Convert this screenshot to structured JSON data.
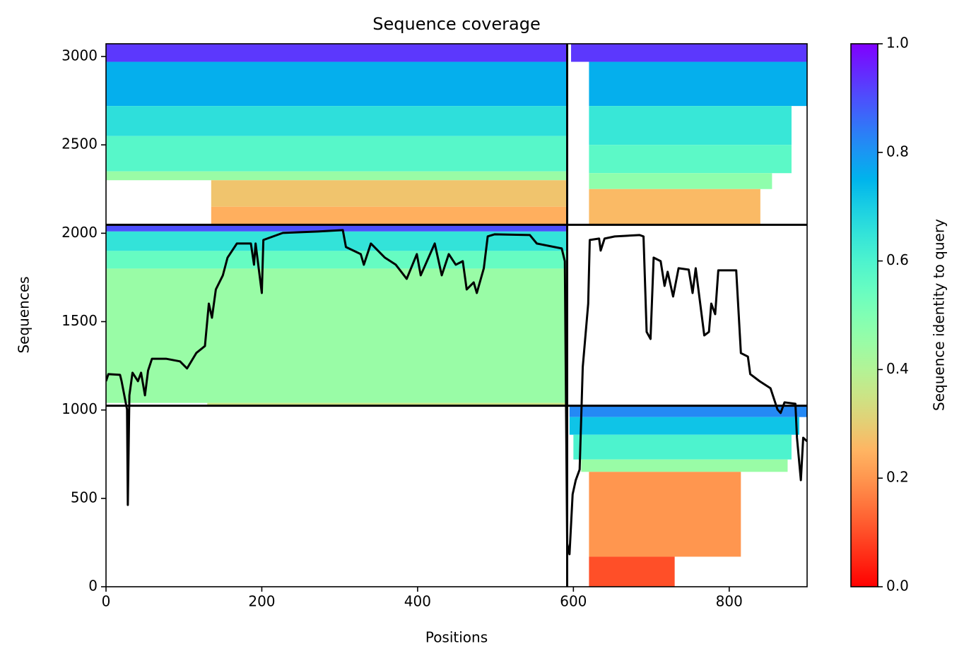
{
  "chart_data": {
    "type": "heatmap",
    "title": "Sequence coverage",
    "x_label": "Positions",
    "y_label": "Sequences",
    "xlim": [
      0,
      900
    ],
    "ylim": [
      0,
      3072
    ],
    "xticks": [
      0,
      200,
      400,
      600,
      800
    ],
    "yticks": [
      0,
      500,
      1000,
      1500,
      2000,
      2500,
      3000
    ],
    "colormap": "rainbow_r",
    "bands": [
      [
        0,
        592,
        2970,
        3072,
        0.93
      ],
      [
        0,
        592,
        2720,
        2970,
        0.76
      ],
      [
        0,
        592,
        2550,
        2720,
        0.66
      ],
      [
        0,
        592,
        2350,
        2550,
        0.58
      ],
      [
        0,
        592,
        2300,
        2350,
        0.45
      ],
      [
        135,
        592,
        2150,
        2300,
        0.28
      ],
      [
        135,
        592,
        2048,
        2150,
        0.24
      ],
      [
        597,
        900,
        2970,
        3072,
        0.93
      ],
      [
        620,
        900,
        2720,
        2970,
        0.76
      ],
      [
        620,
        880,
        2500,
        2720,
        0.64
      ],
      [
        620,
        880,
        2340,
        2500,
        0.57
      ],
      [
        620,
        855,
        2250,
        2340,
        0.47
      ],
      [
        620,
        840,
        2048,
        2250,
        0.26
      ],
      [
        0,
        592,
        2010,
        2048,
        0.9
      ],
      [
        0,
        592,
        1900,
        2010,
        0.65
      ],
      [
        0,
        592,
        1800,
        1900,
        0.55
      ],
      [
        0,
        592,
        1040,
        1800,
        0.45
      ],
      [
        130,
        592,
        1024,
        1040,
        0.35
      ],
      [
        595,
        900,
        960,
        1024,
        0.82
      ],
      [
        595,
        890,
        860,
        960,
        0.72
      ],
      [
        600,
        880,
        720,
        860,
        0.6
      ],
      [
        610,
        875,
        650,
        720,
        0.45
      ],
      [
        620,
        815,
        170,
        650,
        0.2
      ],
      [
        620,
        730,
        0,
        170,
        0.1
      ]
    ],
    "dividers": {
      "x": [
        592
      ],
      "y": [
        1024,
        2048
      ]
    },
    "coverage": {
      "color": "#000000",
      "x": [
        0,
        3,
        18,
        20,
        27,
        28,
        30,
        34,
        41,
        45,
        50,
        54,
        59,
        77,
        95,
        104,
        116,
        127,
        132,
        136,
        141,
        150,
        156,
        168,
        186,
        190,
        192,
        200,
        202,
        227,
        272,
        304,
        308,
        327,
        331,
        340,
        358,
        372,
        386,
        399,
        404,
        422,
        431,
        440,
        449,
        458,
        463,
        472,
        476,
        485,
        490,
        499,
        544,
        553,
        585,
        589,
        592,
        595,
        599,
        603,
        608,
        612,
        619,
        621,
        633,
        635,
        640,
        653,
        685,
        690,
        694,
        699,
        703,
        712,
        717,
        721,
        728,
        735,
        748,
        753,
        757,
        768,
        774,
        777,
        782,
        786,
        809,
        815,
        824,
        827,
        839,
        853,
        862,
        866,
        871,
        885,
        887,
        892,
        895,
        900
      ],
      "values": [
        1163,
        1203,
        1199,
        1163,
        1003,
        463,
        1083,
        1211,
        1163,
        1211,
        1083,
        1223,
        1290,
        1290,
        1275,
        1235,
        1323,
        1362,
        1602,
        1522,
        1682,
        1762,
        1862,
        1942,
        1942,
        1822,
        1942,
        1662,
        1962,
        2002,
        2010,
        2018,
        1922,
        1882,
        1822,
        1942,
        1862,
        1822,
        1742,
        1882,
        1762,
        1942,
        1762,
        1882,
        1822,
        1842,
        1682,
        1722,
        1662,
        1802,
        1982,
        1994,
        1990,
        1942,
        1914,
        1842,
        244,
        184,
        523,
        603,
        663,
        1243,
        1602,
        1962,
        1970,
        1902,
        1970,
        1982,
        1990,
        1982,
        1442,
        1402,
        1862,
        1842,
        1702,
        1782,
        1642,
        1802,
        1794,
        1662,
        1802,
        1422,
        1442,
        1602,
        1542,
        1790,
        1790,
        1322,
        1302,
        1203,
        1163,
        1123,
        1003,
        983,
        1043,
        1035,
        843,
        603,
        843,
        823
      ]
    },
    "colorbar": {
      "label": "Sequence identity to query",
      "lim": [
        0,
        1
      ],
      "ticks": [
        {
          "value": 0,
          "label": "0.0"
        },
        0.2,
        0.4,
        0.6,
        0.8,
        {
          "value": 1,
          "label": "1.0"
        }
      ]
    }
  }
}
